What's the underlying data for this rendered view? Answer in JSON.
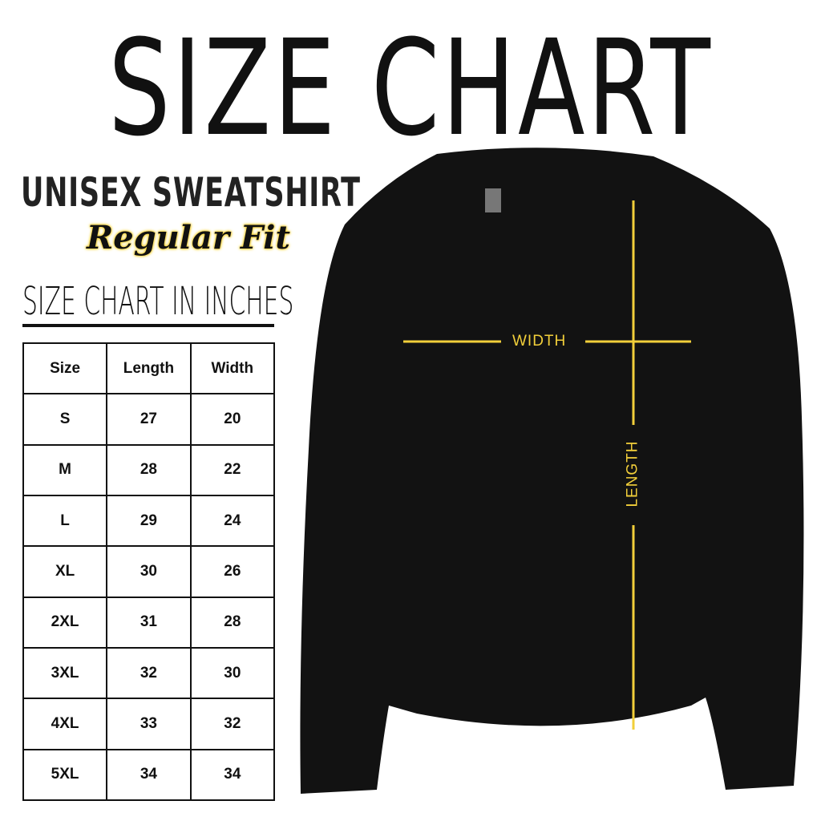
{
  "title": "SIZE CHART",
  "product": "UNISEX SWEATSHIRT",
  "fit": "Regular Fit",
  "table_title": "SIZE CHART IN INCHES",
  "headers": [
    "Size",
    "Length",
    "Width"
  ],
  "rows": [
    [
      "S",
      "27",
      "20"
    ],
    [
      "M",
      "28",
      "22"
    ],
    [
      "L",
      "29",
      "24"
    ],
    [
      "XL",
      "30",
      "26"
    ],
    [
      "2XL",
      "31",
      "28"
    ],
    [
      "3XL",
      "32",
      "30"
    ],
    [
      "4XL",
      "33",
      "32"
    ],
    [
      "5XL",
      "34",
      "34"
    ]
  ],
  "diagram": {
    "width_label": "WIDTH",
    "length_label": "LENGTH",
    "line_color": "#f2cf3a",
    "shirt_color": "#111111"
  }
}
